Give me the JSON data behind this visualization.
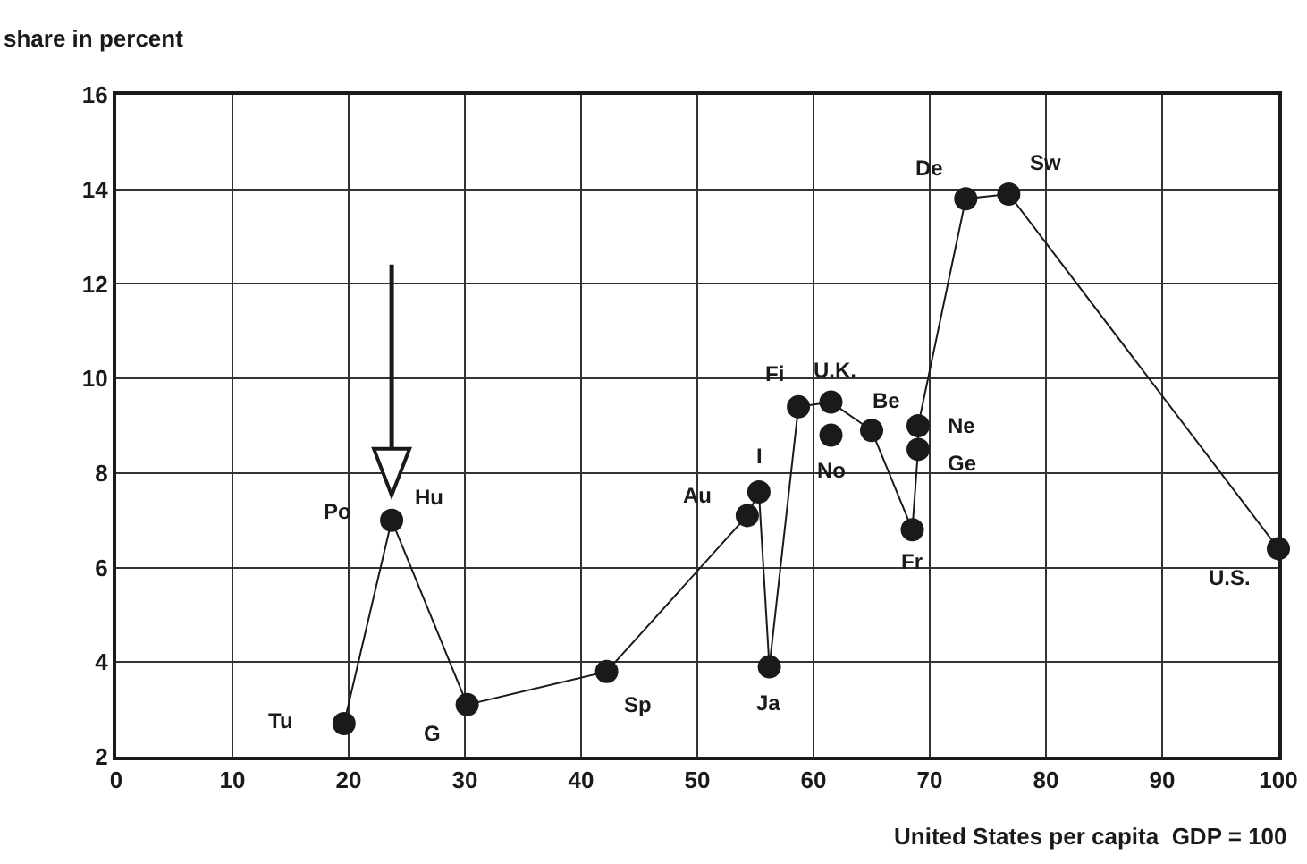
{
  "chart_data": {
    "type": "line",
    "ylabel": "share in percent",
    "xlabel": "United States per capita  GDP = 100",
    "xlim": [
      0,
      100
    ],
    "xticks": [
      0,
      10,
      20,
      30,
      40,
      50,
      60,
      70,
      80,
      90,
      100
    ],
    "ylim": [
      2,
      16
    ],
    "yticks": [
      2,
      4,
      6,
      8,
      10,
      12,
      14,
      16
    ],
    "grid": true,
    "marker": "circle",
    "line_style": "solid",
    "series": [
      {
        "color": "#1a1a1a",
        "x": [
          19.6,
          23.7,
          30.2,
          42.2,
          54.3,
          55.3,
          56.2,
          58.7,
          61.5,
          65.0,
          68.5,
          69.0,
          69.0,
          73.1,
          76.8,
          100
        ],
        "values": [
          2.7,
          7.0,
          3.1,
          3.8,
          7.1,
          7.6,
          3.9,
          9.4,
          9.5,
          8.9,
          6.8,
          8.5,
          9.0,
          13.8,
          13.9,
          6.4
        ]
      },
      {
        "type": "scatter",
        "color": "#1a1a1a",
        "x": [
          61.5
        ],
        "values": [
          8.8
        ]
      }
    ],
    "annotations": [
      {
        "text": "Tu",
        "x": 19.6,
        "y": 2.7
      },
      {
        "text": "Po",
        "x": 23.7,
        "y": 7.0
      },
      {
        "text": "Hu",
        "x": 23.7,
        "y": 7.0
      },
      {
        "text": "G",
        "x": 30.2,
        "y": 3.1
      },
      {
        "text": "Sp",
        "x": 42.2,
        "y": 3.8
      },
      {
        "text": "Au",
        "x": 54.3,
        "y": 7.1
      },
      {
        "text": "I",
        "x": 55.3,
        "y": 7.6
      },
      {
        "text": "Ja",
        "x": 56.2,
        "y": 3.9
      },
      {
        "text": "Fi",
        "x": 58.7,
        "y": 9.4
      },
      {
        "text": "U.K.",
        "x": 61.5,
        "y": 9.5
      },
      {
        "text": "No",
        "x": 61.5,
        "y": 8.8
      },
      {
        "text": "Be",
        "x": 65.0,
        "y": 8.9
      },
      {
        "text": "Fr",
        "x": 68.5,
        "y": 6.8
      },
      {
        "text": "Ge",
        "x": 69.0,
        "y": 8.5
      },
      {
        "text": "Ne",
        "x": 69.0,
        "y": 9.0
      },
      {
        "text": "De",
        "x": 73.1,
        "y": 13.8
      },
      {
        "text": "Sw",
        "x": 76.8,
        "y": 13.9
      },
      {
        "text": "U.S.",
        "x": 100,
        "y": 6.4
      }
    ]
  }
}
